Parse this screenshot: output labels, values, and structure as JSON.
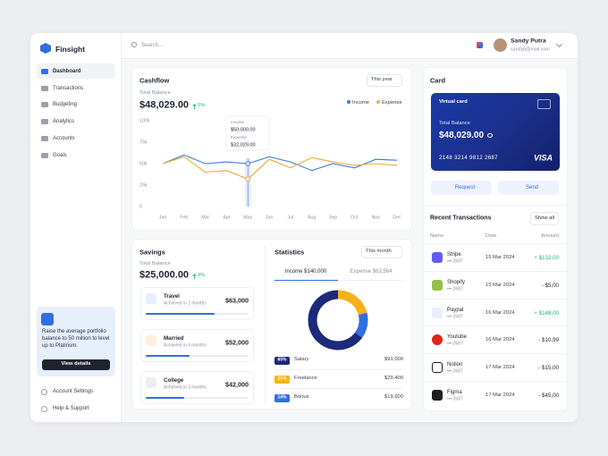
{
  "sidebar": {
    "brand": "Finsight",
    "nav": [
      "Dashboard",
      "Transactions",
      "Budgeting",
      "Analytics",
      "Accounts",
      "Goals"
    ],
    "promo": {
      "text": "Raise the average portfolio balance to 50 million to level up to Platinum.",
      "button": "View details"
    },
    "footer": [
      "Account Settings",
      "Help & Support"
    ]
  },
  "topbar": {
    "search": "Search...",
    "user_name": "Sandy Putra",
    "user_email": "sandyp@mail.com"
  },
  "cashflow": {
    "title": "Cashflow",
    "period": "This year",
    "balance_label": "Total Balance",
    "balance": "$48,029.00",
    "change": "5%",
    "chart_data": {
      "type": "line",
      "categories": [
        "Jan",
        "Feb",
        "Mar",
        "Apr",
        "May",
        "Jun",
        "Jul",
        "Aug",
        "Sep",
        "Oct",
        "Nov",
        "Dec"
      ],
      "series": [
        {
          "name": "Income",
          "color": "#3c7be0",
          "values": [
            50,
            60,
            50,
            52,
            50,
            58,
            52,
            42,
            50,
            45,
            55,
            54
          ]
        },
        {
          "name": "Expense",
          "color": "#f2a93b",
          "values": [
            50,
            58,
            40,
            42,
            32.029,
            55,
            45,
            57,
            52,
            48,
            50,
            48
          ]
        }
      ],
      "ylim": [
        0,
        100
      ],
      "yticks": [
        {
          "value": 0,
          "label": "0"
        },
        {
          "value": 25,
          "label": "25k"
        },
        {
          "value": 50,
          "label": "50k"
        },
        {
          "value": 75,
          "label": "75k"
        },
        {
          "value": 100,
          "label": "100k"
        }
      ],
      "grid": false,
      "tooltip": {
        "income_label": "Income",
        "income": "$50,000.00",
        "expense_label": "Expense",
        "expense": "$32,029.00"
      }
    }
  },
  "savings": {
    "title": "Savings",
    "balance_label": "Total Balance",
    "balance": "$25,000.00",
    "change": "3%",
    "items": [
      {
        "name": "Travel",
        "note": "Achieved in 2 months",
        "amount": "$63,000",
        "progress": 67
      },
      {
        "name": "Married",
        "note": "Achieved in 4 months",
        "amount": "$52,000",
        "progress": 43
      },
      {
        "name": "College",
        "note": "Achieved in 3 months",
        "amount": "$42,000",
        "progress": 37
      }
    ]
  },
  "statistics": {
    "title": "Statistics",
    "period": "This month",
    "tabs": [
      "Income $140,000",
      "Expense $63,564"
    ],
    "chart_data": {
      "type": "donut",
      "categories": [
        "Salary",
        "Freelance",
        "Bonus"
      ],
      "values": [
        65,
        21,
        14
      ],
      "value_labels": [
        "65%",
        "21%",
        "14%"
      ],
      "colors": [
        "#1b2a7a",
        "#f6b21b",
        "#2f6fe4"
      ],
      "amounts": [
        "$91,000",
        "$29,400",
        "$19,600"
      ]
    }
  },
  "card": {
    "title": "Card",
    "card_type": "Virtual card",
    "balance_label": "Total Balance",
    "balance": "$48,029.00",
    "number": "2148 3214 9812 2687",
    "brand": "VISA",
    "buttons": [
      "Request",
      "Send"
    ]
  },
  "transactions": {
    "title": "Recent Transactions",
    "show_all": "Show all",
    "columns": [
      "Name",
      "Date",
      "Amount"
    ],
    "rows": [
      {
        "name": "Stripe",
        "account": "••• 2687",
        "date": "15 Mar 2024",
        "amount": "+ $132,00"
      },
      {
        "name": "Shopify",
        "account": "••• 2687",
        "date": "15 Mar 2024",
        "amount": "- $5,00"
      },
      {
        "name": "Paypal",
        "account": "••• 2687",
        "date": "16 Mar 2024",
        "amount": "+ $148,00"
      },
      {
        "name": "Youtube",
        "account": "••• 2687",
        "date": "16 Mar 2024",
        "amount": "- $10,99"
      },
      {
        "name": "Notion",
        "account": "••• 2687",
        "date": "17 Mar 2024",
        "amount": "- $15,00"
      },
      {
        "name": "Figma",
        "account": "••• 2687",
        "date": "17 Mar 2024",
        "amount": "- $45,00"
      }
    ]
  }
}
